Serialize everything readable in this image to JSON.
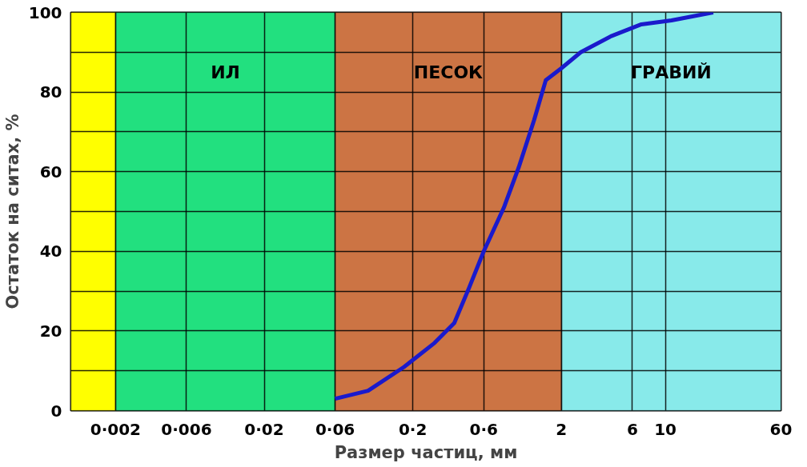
{
  "chart_data": {
    "type": "line",
    "xlabel": "Размер частиц, мм",
    "ylabel": "Остаток на ситах, %",
    "log": "x",
    "x": [
      0.06,
      0.1,
      0.175,
      0.28,
      0.38,
      0.48,
      0.6,
      0.82,
      1.03,
      1.31,
      1.57,
      2,
      2.7,
      4.3,
      6.9,
      11,
      21
    ],
    "series": [
      {
        "color": "#1a1acc",
        "values": [
          3,
          5,
          11,
          17,
          22,
          31,
          40,
          51,
          61,
          73,
          83,
          86,
          90,
          94,
          97,
          98,
          100
        ]
      }
    ],
    "xlim": [
      0.001,
      60
    ],
    "xticks": [
      {
        "value": 0.002,
        "label": "0·002"
      },
      {
        "value": 0.006,
        "label": "0·006"
      },
      {
        "value": 0.02,
        "label": "0·02"
      },
      {
        "value": 0.06,
        "label": "0·06"
      },
      {
        "value": 0.2,
        "label": "0·2"
      },
      {
        "value": 0.6,
        "label": "0·6"
      },
      2,
      6,
      10,
      60
    ],
    "ylim": [
      0,
      100
    ],
    "yticks": [
      0,
      {
        "value": 10,
        "label": null
      },
      20,
      {
        "value": 30,
        "label": null
      },
      40,
      {
        "value": 50,
        "label": null
      },
      60,
      {
        "value": 70,
        "label": null
      },
      80,
      {
        "value": 90,
        "label": null
      },
      100
    ],
    "grid": true,
    "line_style": "solid",
    "marker": "none",
    "bands": [
      {
        "axis": "x",
        "from": 0.001,
        "to": 0.002,
        "label": null,
        "color": "#ffff00"
      },
      {
        "axis": "x",
        "from": 0.002,
        "to": 0.06,
        "label": "ИЛ",
        "color": "#22e07f"
      },
      {
        "axis": "x",
        "from": 0.06,
        "to": 2,
        "label": "ПЕСОК",
        "color": "#cc7444"
      },
      {
        "axis": "x",
        "from": 2,
        "to": 60,
        "label": "ГРАВИЙ",
        "color": "#88eaea"
      }
    ]
  }
}
